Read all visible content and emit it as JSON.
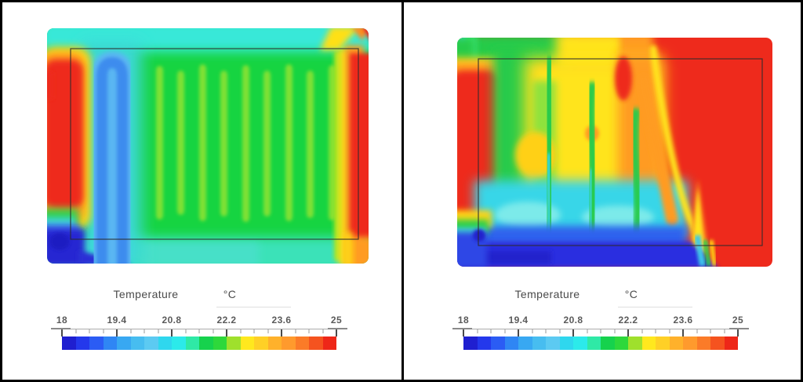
{
  "window": {
    "background": "#ffffff",
    "frame_border_color": "#000000"
  },
  "legend": {
    "title": "Temperature",
    "unit": "°C",
    "tick_labels": [
      "18",
      "19.4",
      "20.8",
      "22.2",
      "23.6",
      "25"
    ],
    "colors": [
      "#1f1fd0",
      "#2438ec",
      "#2b5cf4",
      "#2f86f4",
      "#38a8f2",
      "#47bdf0",
      "#5ccaf2",
      "#2fd7ee",
      "#2ceaea",
      "#2fe9a6",
      "#16d24d",
      "#2ed83b",
      "#9fe02c",
      "#ffe81e",
      "#ffd026",
      "#ffb12b",
      "#ff9a2d",
      "#fb7b28",
      "#f5531f",
      "#ee2718"
    ]
  },
  "chart_data": [
    {
      "type": "heatmap",
      "panel": "left",
      "title": "Temperature",
      "unit": "°C",
      "colorbar": {
        "min": 18,
        "max": 25,
        "major_ticks": [
          18,
          19.4,
          20.8,
          22.2,
          23.6,
          25
        ],
        "num_segments": 20,
        "segment_step_c": 0.35,
        "orientation": "horizontal"
      },
      "description": "Floor-heating serpentine contour: uniform green core with 9 lighter vertical coil stripes, cold blue supply/return loop near the left wall, hot red bands along left and right walls, turquoise strips at top and bottom, dark-blue cold pocket in the bottom-left corner, yellow-orange wedge at the top-right corner.",
      "regions": [
        {
          "zone": "left wall band",
          "approx_temp_c": 25
        },
        {
          "zone": "right wall band",
          "approx_temp_c": 25
        },
        {
          "zone": "supply/return loop (left)",
          "approx_temp_c": 19.6
        },
        {
          "zone": "core field",
          "approx_temp_c": 21.7
        },
        {
          "zone": "serpentine coil stripes",
          "approx_temp_c": 22.2,
          "count": 9
        },
        {
          "zone": "top strip",
          "approx_temp_c": 20.9
        },
        {
          "zone": "bottom strip",
          "approx_temp_c": 20.9
        },
        {
          "zone": "bottom-left corner pocket",
          "approx_temp_c": 18.2
        },
        {
          "zone": "top-right corner wedge",
          "approx_temp_c": 23.8
        }
      ]
    },
    {
      "type": "heatmap",
      "panel": "right",
      "title": "Temperature",
      "unit": "°C",
      "colorbar": {
        "min": 18,
        "max": 25,
        "major_ticks": [
          18,
          19.4,
          20.8,
          22.2,
          23.6,
          25
        ],
        "num_segments": 20,
        "segment_step_c": 0.35,
        "orientation": "horizontal"
      },
      "description": "Convection-disturbed contour: right half saturated red, hot red column along the left wall, dark-blue cold layer along the floor with turquoise pool above it, green-yellow-orange plumes rising through the centre, top band grading green to yellow to orange to red from left to right, yellow spike at the cold/hot boundary near the bottom right.",
      "regions": [
        {
          "zone": "right half",
          "approx_temp_c": 25
        },
        {
          "zone": "left wall column",
          "approx_temp_c": 25
        },
        {
          "zone": "floor layer",
          "approx_temp_c": 18.3
        },
        {
          "zone": "cool pool above floor",
          "approx_temp_c": 20.6
        },
        {
          "zone": "central rising plumes",
          "approx_temp_c": 22.5
        },
        {
          "zone": "top band gradient left to right",
          "approx_temp_c": "21 to 25"
        },
        {
          "zone": "bottom-left corner pocket",
          "approx_temp_c": 18.2
        }
      ]
    }
  ]
}
